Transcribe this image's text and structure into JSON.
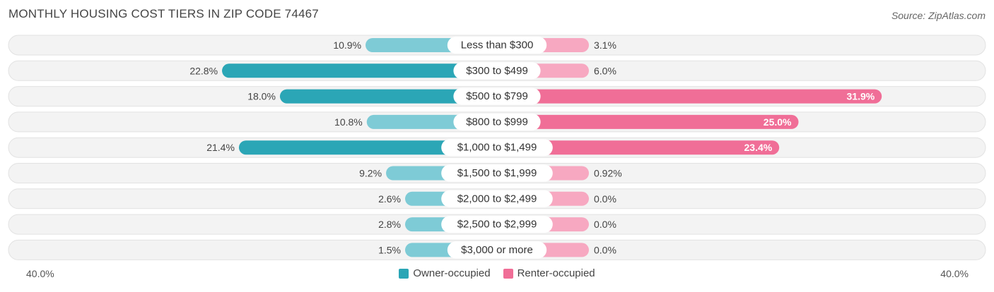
{
  "header": {
    "title": "MONTHLY HOUSING COST TIERS IN ZIP CODE 74467",
    "source": "Source: ZipAtlas.com"
  },
  "axis": {
    "left_label": "40.0%",
    "right_label": "40.0%"
  },
  "legend": {
    "owner_label": "Owner-occupied",
    "renter_label": "Renter-occupied"
  },
  "colors": {
    "owner_dark": "#2ba6b6",
    "owner_light": "#7ecbd6",
    "renter_dark": "#f06e97",
    "renter_light": "#f7a8c1",
    "row_bg": "#f3f3f3",
    "row_border": "#e2e2e2"
  },
  "chart_data": {
    "type": "bar",
    "orientation": "diverging-horizontal",
    "xlim": [
      -40,
      40
    ],
    "categories": [
      "Less than $300",
      "$300 to $499",
      "$500 to $799",
      "$800 to $999",
      "$1,000 to $1,499",
      "$1,500 to $1,999",
      "$2,000 to $2,499",
      "$2,500 to $2,999",
      "$3,000 or more"
    ],
    "series": [
      {
        "name": "Owner-occupied",
        "values": [
          10.9,
          22.8,
          18.0,
          10.8,
          21.4,
          9.2,
          2.6,
          2.8,
          1.5
        ],
        "labels": [
          "10.9%",
          "22.8%",
          "18.0%",
          "10.8%",
          "21.4%",
          "9.2%",
          "2.6%",
          "2.8%",
          "1.5%"
        ]
      },
      {
        "name": "Renter-occupied",
        "values": [
          3.1,
          6.0,
          31.9,
          25.0,
          23.4,
          0.92,
          0.0,
          0.0,
          0.0
        ],
        "labels": [
          "3.1%",
          "6.0%",
          "31.9%",
          "25.0%",
          "23.4%",
          "0.92%",
          "0.0%",
          "0.0%",
          "0.0%"
        ]
      }
    ]
  }
}
